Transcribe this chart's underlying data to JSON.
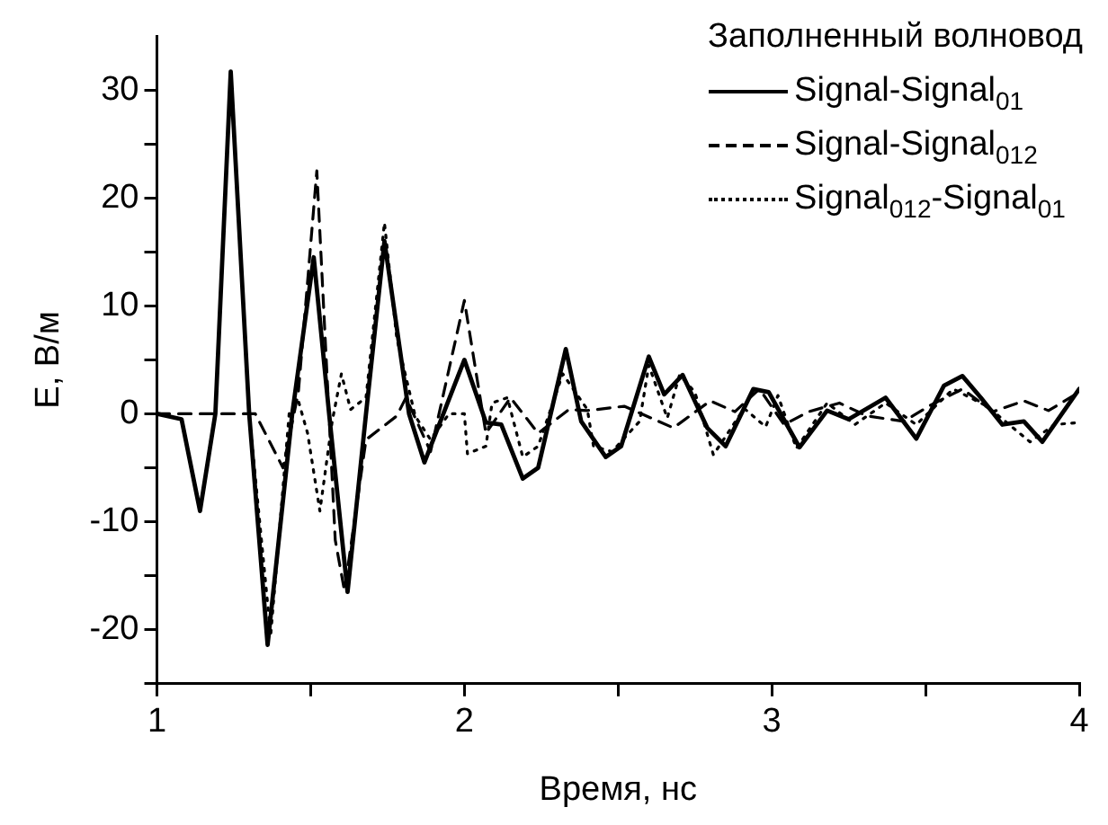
{
  "chart_data": {
    "type": "line",
    "xlabel": "Время, нс",
    "ylabel": "Е, В/м",
    "legend_title": "Заполненный волновод",
    "legend": "top right",
    "grid": false,
    "marker": "none",
    "xlim": [
      1,
      4
    ],
    "xticks": [
      1,
      {
        "value": 1.5,
        "label": null
      },
      2,
      {
        "value": 2.5,
        "label": null
      },
      3,
      {
        "value": 3.5,
        "label": null
      },
      4
    ],
    "ylim": [
      -25,
      35
    ],
    "yticks": [
      {
        "value": -25,
        "label": null
      },
      -20,
      {
        "value": -15,
        "label": null
      },
      -10,
      {
        "value": -5,
        "label": null
      },
      0,
      {
        "value": 5,
        "label": null
      },
      10,
      {
        "value": 15,
        "label": null
      },
      20,
      {
        "value": 25,
        "label": null
      },
      30
    ],
    "series": [
      {
        "name": "Signal-Signal$_{01}$",
        "color": "#000000",
        "line_style": "solid",
        "x": [
          1.0,
          1.08,
          1.14,
          1.19,
          1.24,
          1.3,
          1.36,
          1.44,
          1.51,
          1.56,
          1.62,
          1.68,
          1.74,
          1.82,
          1.87,
          2.0,
          2.07,
          2.12,
          2.19,
          2.24,
          2.33,
          2.38,
          2.46,
          2.51,
          2.6,
          2.65,
          2.71,
          2.79,
          2.85,
          2.94,
          2.99,
          3.09,
          3.18,
          3.25,
          3.37,
          3.47,
          3.56,
          3.62,
          3.68,
          3.75,
          3.82,
          3.88,
          4.0
        ],
        "values": [
          0,
          -0.5,
          -9,
          0,
          31.7,
          0,
          -21.4,
          0,
          14.5,
          0,
          -16.5,
          0,
          16,
          0,
          -4.5,
          5,
          -0.8,
          -1,
          -6,
          -5,
          6,
          -0.7,
          -4,
          -3,
          5.3,
          1.8,
          3.6,
          -1.3,
          -3,
          2.3,
          2,
          -3.1,
          0.3,
          -0.5,
          1.5,
          -2.3,
          2.6,
          3.5,
          1.5,
          -1,
          -0.7,
          -2.6,
          2.3
        ]
      },
      {
        "name": "Signal-Signal$_{012}$",
        "color": "#000000",
        "line_style": "dashed",
        "x": [
          1.0,
          1.32,
          1.41,
          1.46,
          1.52,
          1.58,
          1.61,
          1.68,
          1.78,
          1.81,
          1.89,
          2.0,
          2.07,
          2.15,
          2.24,
          2.34,
          2.4,
          2.52,
          2.68,
          2.8,
          2.88,
          2.96,
          3.04,
          3.12,
          3.22,
          3.31,
          3.43,
          3.51,
          3.62,
          3.72,
          3.82,
          3.9,
          4.0
        ],
        "values": [
          0,
          0,
          -5,
          2,
          22.5,
          -11.7,
          -16.4,
          -2.4,
          -0.2,
          1.5,
          -3.5,
          10.5,
          -1.8,
          1.5,
          -1.8,
          0.4,
          0.3,
          0.7,
          -1.3,
          1.2,
          0.2,
          2.3,
          -1,
          0.2,
          1,
          -0.2,
          -0.7,
          0.7,
          2.3,
          0.2,
          1.2,
          0.3,
          2
        ]
      },
      {
        "name": "Signal$_{012}$-Signal$_{01}$",
        "color": "#000000",
        "line_style": "dotted",
        "x": [
          1.0,
          1.08,
          1.14,
          1.19,
          1.24,
          1.3,
          1.37,
          1.43,
          1.46,
          1.49,
          1.53,
          1.57,
          1.6,
          1.63,
          1.68,
          1.74,
          1.78,
          1.84,
          1.89,
          1.95,
          2.0,
          2.01,
          2.07,
          2.09,
          2.14,
          2.19,
          2.24,
          2.32,
          2.4,
          2.42,
          2.48,
          2.57,
          2.6,
          2.66,
          2.7,
          2.75,
          2.81,
          2.91,
          2.98,
          3.02,
          3.08,
          3.18,
          3.27,
          3.37,
          3.47,
          3.59,
          3.7,
          3.84,
          3.92,
          4.0
        ],
        "values": [
          0,
          -0.5,
          -9,
          0,
          31.7,
          0,
          -20.5,
          0,
          1.2,
          -1.8,
          -9,
          -0.7,
          3.7,
          0.4,
          1.5,
          17.7,
          7,
          -0.2,
          -2.4,
          0,
          0,
          -3.7,
          -3,
          1,
          1.5,
          -4,
          -3,
          3.7,
          0.4,
          -3,
          -3.5,
          -0.7,
          4.5,
          -0.4,
          3.6,
          2,
          -3.8,
          0.5,
          -1.2,
          1.7,
          -3.2,
          1,
          -1,
          1,
          -1,
          2.3,
          0.7,
          -2.6,
          -1,
          -0.8
        ]
      }
    ]
  }
}
